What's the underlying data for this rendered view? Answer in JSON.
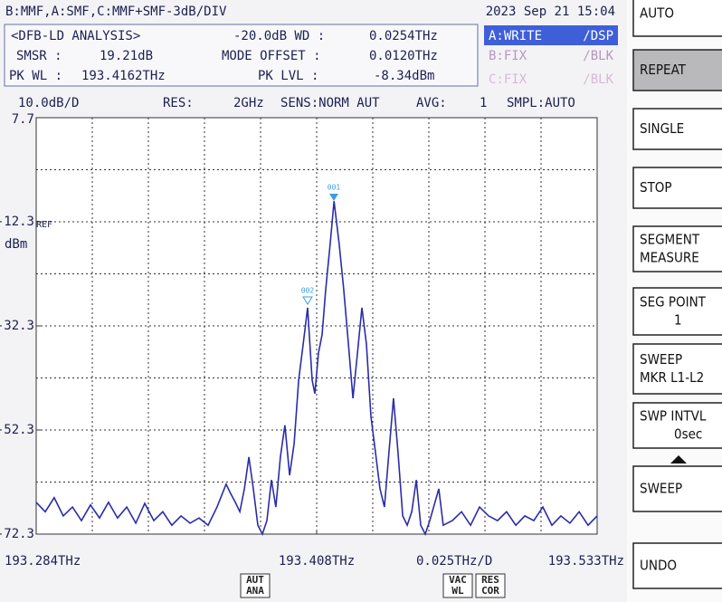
{
  "status": {
    "trace_config": "B:MMF,A:SMF,C:MMF+SMF-3dB/DIV",
    "datetime": "2023 Sep 21 15:04"
  },
  "analysis": {
    "title": "<DFB-LD ANALYSIS>",
    "wd_label": "-20.0dB WD :",
    "wd_value": "0.0254THz",
    "smsr_label": "SMSR :",
    "smsr_value": "19.21dB",
    "offset_label": "MODE OFFSET :",
    "offset_value": "0.0120THz",
    "pkwl_label": "PK WL :",
    "pkwl_value": "193.4162THz",
    "pklvl_label": "PK LVL :",
    "pklvl_value": "-8.34dBm"
  },
  "traces": [
    {
      "label": "A:WRITE",
      "mode": "/DSP"
    },
    {
      "label": "B:FIX",
      "mode": "/BLK"
    },
    {
      "label": "C:FIX",
      "mode": "/BLK"
    }
  ],
  "settings": {
    "scale": "10.0dB/D",
    "res_label": "RES:",
    "res_value": "2GHz",
    "sens": "SENS:NORM AUT",
    "avg_label": "AVG:",
    "avg_value": "1",
    "smpl": "SMPL:AUTO"
  },
  "chart_data": {
    "type": "line",
    "y_unit": "dBm",
    "ref_label": "REF",
    "x_div_label": "0.025THz/D",
    "grid": true,
    "xlim": [
      193.284,
      193.533
    ],
    "ylim": [
      -72.3,
      7.7
    ],
    "xticks": [
      {
        "value": 193.284,
        "label": "193.284THz"
      },
      {
        "value": 193.4085,
        "label": "193.408THz"
      },
      {
        "value": 193.533,
        "label": "193.533THz"
      }
    ],
    "yticks": [
      7.7,
      -12.3,
      -32.3,
      -52.3,
      -72.3
    ],
    "marker_labels": [
      "001",
      "002"
    ],
    "x": [
      193.284,
      193.288,
      193.292,
      193.296,
      193.3001,
      193.3041,
      193.3081,
      193.3121,
      193.3161,
      193.3201,
      193.3242,
      193.3282,
      193.3322,
      193.3362,
      193.3402,
      193.3442,
      193.3483,
      193.3523,
      193.3563,
      193.3603,
      193.3643,
      193.3683,
      193.3703,
      193.3724,
      193.3744,
      193.3764,
      193.3784,
      193.3804,
      193.3824,
      193.3844,
      193.3864,
      193.3884,
      193.3904,
      193.3924,
      193.3944,
      193.3965,
      193.3985,
      193.4005,
      193.4025,
      193.4045,
      193.4065,
      193.4077,
      193.4093,
      193.4109,
      193.4125,
      193.4145,
      193.4162,
      193.4185,
      193.4205,
      193.4226,
      193.4246,
      193.4266,
      193.4286,
      193.4306,
      193.4326,
      193.4346,
      193.4366,
      193.4386,
      193.4406,
      193.4426,
      193.4446,
      193.4467,
      193.4487,
      193.4507,
      193.4527,
      193.4547,
      193.4567,
      193.4587,
      193.4627,
      193.4647,
      193.4687,
      193.4728,
      193.4768,
      193.4808,
      193.4848,
      193.4888,
      193.4928,
      193.4969,
      193.5009,
      193.5049,
      193.5089,
      193.5129,
      193.5169,
      193.5209,
      193.525,
      193.529,
      193.533
    ],
    "series": [
      {
        "name": "A:WRITE",
        "color": "#2b2ca8",
        "values": [
          -66.2,
          -68.0,
          -65.3,
          -68.8,
          -67.1,
          -69.7,
          -66.7,
          -69.2,
          -66.2,
          -69.2,
          -67.1,
          -70.2,
          -66.4,
          -69.7,
          -68.0,
          -70.6,
          -68.8,
          -70.2,
          -69.2,
          -70.6,
          -67.1,
          -62.7,
          -64.5,
          -66.2,
          -68.0,
          -63.6,
          -57.5,
          -63.6,
          -70.6,
          -72.3,
          -69.7,
          -61.9,
          -67.1,
          -57.5,
          -51.4,
          -61.0,
          -54.9,
          -42.7,
          -35.8,
          -28.8,
          -42.7,
          -45.3,
          -37.5,
          -34.0,
          -25.3,
          -16.6,
          -8.34,
          -16.6,
          -25.3,
          -35.8,
          -46.2,
          -37.5,
          -28.8,
          -35.8,
          -49.7,
          -56.6,
          -63.6,
          -67.1,
          -56.6,
          -46.2,
          -56.6,
          -68.8,
          -70.6,
          -68.0,
          -61.9,
          -70.6,
          -72.3,
          -69.7,
          -63.6,
          -70.6,
          -69.7,
          -68.0,
          -70.6,
          -67.1,
          -68.8,
          -69.7,
          -68.0,
          -70.6,
          -68.8,
          -69.7,
          -67.1,
          -70.6,
          -68.8,
          -70.2,
          -68.0,
          -70.6,
          -68.8
        ]
      }
    ]
  },
  "bottom_icons": [
    [
      "AUT",
      "ANA"
    ],
    [
      "VAC",
      "WL"
    ],
    [
      "RES",
      "COR"
    ]
  ],
  "softkeys": [
    [
      "AUTO"
    ],
    [
      "REPEAT"
    ],
    [
      "SINGLE"
    ],
    [
      "STOP"
    ],
    [
      "SEGMENT",
      "MEASURE"
    ],
    [
      "SEG POINT",
      "1"
    ],
    [
      "SWEEP",
      "MKR L1-L2"
    ],
    [
      "SWP INTVL",
      "0sec"
    ],
    [
      "SWEEP"
    ],
    [
      "UNDO"
    ]
  ]
}
